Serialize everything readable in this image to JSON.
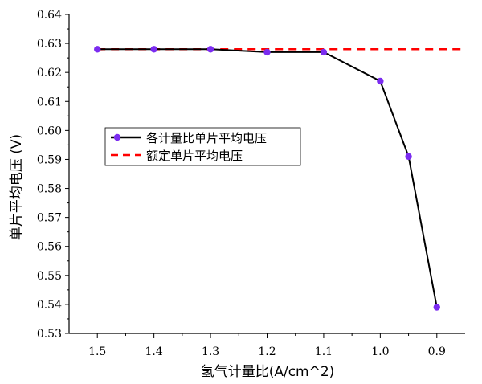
{
  "chart_data": {
    "type": "line",
    "categories": [
      "1.5",
      "1.4",
      "1.3",
      "1.2",
      "1.1",
      "1.0",
      "0.95",
      "0.9"
    ],
    "xlabel": "氢气计量比(A/cm^2)",
    "ylabel": "单片平均电压 (V)",
    "ylim": [
      0.53,
      0.64
    ],
    "yticks": [
      "0.53",
      "0.54",
      "0.55",
      "0.56",
      "0.57",
      "0.58",
      "0.59",
      "0.60",
      "0.61",
      "0.62",
      "0.63",
      "0.64"
    ],
    "xticks": [
      "1.5",
      "1.4",
      "1.3",
      "1.2",
      "1.1",
      "1.0",
      "0.9"
    ],
    "x_values": [
      1.5,
      1.4,
      1.3,
      1.2,
      1.1,
      1.0,
      0.95,
      0.9
    ],
    "xlim": [
      1.55,
      0.85
    ],
    "series": [
      {
        "name": "各计量比单片平均电压",
        "x": [
          1.5,
          1.4,
          1.3,
          1.2,
          1.1,
          1.0,
          0.95,
          0.9
        ],
        "values": [
          0.628,
          0.628,
          0.628,
          0.627,
          0.627,
          0.617,
          0.591,
          0.539
        ],
        "color": "#000000",
        "marker_color": "#7b2cf0",
        "style": "solid-with-markers"
      },
      {
        "name": "额定单片平均电压",
        "x": [
          1.5,
          0.85
        ],
        "values": [
          0.628,
          0.628
        ],
        "color": "#ff0000",
        "style": "dashed"
      }
    ],
    "legend": "inside-center-left",
    "grid": false
  }
}
